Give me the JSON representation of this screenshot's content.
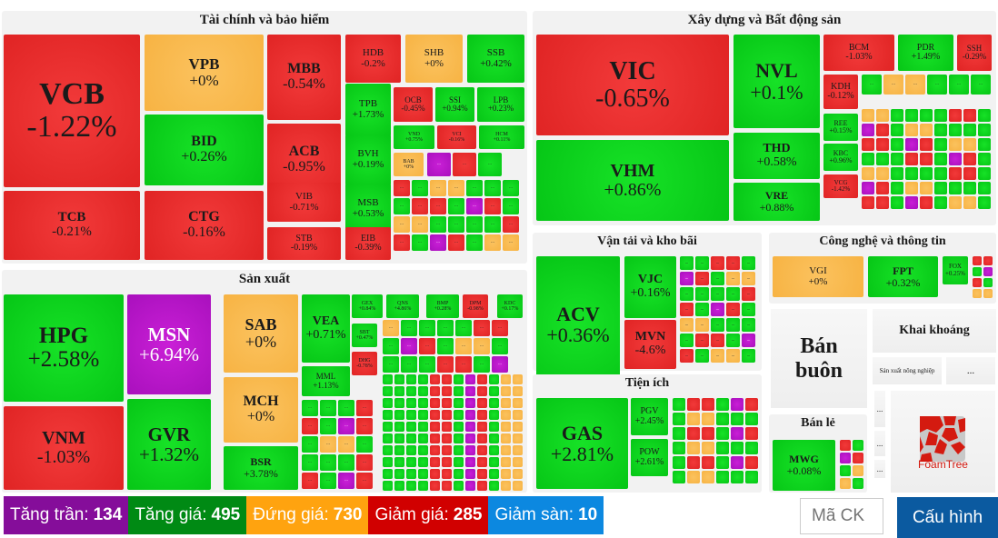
{
  "colors": {
    "up": "#06c616",
    "down": "#e02424",
    "flat": "#f7b343",
    "ceiling": "#a910bd",
    "floor": "#2f9df0",
    "config_button": "#0b5aa0"
  },
  "sectors": [
    {
      "id": "finance",
      "title": "Tài chính và bảo hiểm",
      "big": [
        {
          "s": "VCB",
          "v": "-1.22%",
          "c": "r"
        },
        {
          "s": "TCB",
          "v": "-0.21%",
          "c": "r"
        },
        {
          "s": "VPB",
          "v": "+0%",
          "c": "y"
        },
        {
          "s": "BID",
          "v": "+0.26%",
          "c": "g"
        },
        {
          "s": "CTG",
          "v": "-0.16%",
          "c": "r"
        },
        {
          "s": "MBB",
          "v": "-0.54%",
          "c": "r"
        },
        {
          "s": "ACB",
          "v": "-0.95%",
          "c": "r"
        },
        {
          "s": "VIB",
          "v": "-0.71%",
          "c": "r"
        },
        {
          "s": "STB",
          "v": "-0.19%",
          "c": "r"
        },
        {
          "s": "HDB",
          "v": "-0.2%",
          "c": "r"
        },
        {
          "s": "SHB",
          "v": "+0%",
          "c": "y"
        },
        {
          "s": "SSB",
          "v": "+0.42%",
          "c": "g"
        },
        {
          "s": "TPB",
          "v": "+1.73%",
          "c": "g"
        },
        {
          "s": "BVH",
          "v": "+0.19%",
          "c": "g"
        },
        {
          "s": "MSB",
          "v": "+0.53%",
          "c": "g"
        },
        {
          "s": "EIB",
          "v": "-0.39%",
          "c": "r"
        },
        {
          "s": "OCB",
          "v": "-0.45%",
          "c": "r"
        },
        {
          "s": "SSI",
          "v": "+0.94%",
          "c": "g"
        },
        {
          "s": "LPB",
          "v": "+0.23%",
          "c": "g"
        },
        {
          "s": "VND",
          "v": "+0.75%",
          "c": "g"
        },
        {
          "s": "VCI",
          "v": "-0.16%",
          "c": "r"
        },
        {
          "s": "HCM",
          "v": "+0.11%",
          "c": "g"
        },
        {
          "s": "BAB",
          "v": "+0%",
          "c": "y"
        }
      ]
    },
    {
      "id": "realestate",
      "title": "Xây dựng và Bất động sản",
      "big": [
        {
          "s": "VIC",
          "v": "-0.65%",
          "c": "r"
        },
        {
          "s": "VHM",
          "v": "+0.86%",
          "c": "g"
        },
        {
          "s": "NVL",
          "v": "+0.1%",
          "c": "g"
        },
        {
          "s": "THD",
          "v": "+0.58%",
          "c": "g"
        },
        {
          "s": "VRE",
          "v": "+0.88%",
          "c": "g"
        },
        {
          "s": "BCM",
          "v": "-1.03%",
          "c": "r"
        },
        {
          "s": "PDR",
          "v": "+1.49%",
          "c": "g"
        },
        {
          "s": "SSH",
          "v": "-0.29%",
          "c": "r"
        },
        {
          "s": "KDH",
          "v": "-0.12%",
          "c": "r"
        },
        {
          "s": "REE",
          "v": "+0.15%",
          "c": "g"
        },
        {
          "s": "KBC",
          "v": "+0.96%",
          "c": "g"
        },
        {
          "s": "VCG",
          "v": "-1.42%",
          "c": "r"
        }
      ]
    },
    {
      "id": "manufacturing",
      "title": "Sản xuất",
      "big": [
        {
          "s": "HPG",
          "v": "+2.58%",
          "c": "g"
        },
        {
          "s": "VNM",
          "v": "-1.03%",
          "c": "r"
        },
        {
          "s": "MSN",
          "v": "+6.94%",
          "c": "p"
        },
        {
          "s": "GVR",
          "v": "+1.32%",
          "c": "g"
        },
        {
          "s": "SAB",
          "v": "+0%",
          "c": "y"
        },
        {
          "s": "MCH",
          "v": "+0%",
          "c": "y"
        },
        {
          "s": "BSR",
          "v": "+3.78%",
          "c": "g"
        },
        {
          "s": "VEA",
          "v": "+0.71%",
          "c": "g"
        },
        {
          "s": "MML",
          "v": "+1.13%",
          "c": "g"
        },
        {
          "s": "GEX",
          "v": "+0.84%",
          "c": "g"
        },
        {
          "s": "QNS",
          "v": "+4.86%",
          "c": "g"
        },
        {
          "s": "BMP",
          "v": "+0.28%",
          "c": "g"
        },
        {
          "s": "DPM",
          "v": "-0.98%",
          "c": "r"
        },
        {
          "s": "KDC",
          "v": "+0.17%",
          "c": "g"
        },
        {
          "s": "SBT",
          "v": "+0.47%",
          "c": "g"
        },
        {
          "s": "DHG",
          "v": "-0.78%",
          "c": "r"
        }
      ]
    },
    {
      "id": "transport",
      "title": "Vận tải và kho bãi",
      "big": [
        {
          "s": "ACV",
          "v": "+0.36%",
          "c": "g"
        },
        {
          "s": "VJC",
          "v": "+0.16%",
          "c": "g"
        },
        {
          "s": "MVN",
          "v": "-4.6%",
          "c": "r"
        }
      ]
    },
    {
      "id": "utilities",
      "title": "Tiện ích",
      "big": [
        {
          "s": "GAS",
          "v": "+2.81%",
          "c": "g"
        },
        {
          "s": "PGV",
          "v": "+2.45%",
          "c": "g"
        },
        {
          "s": "POW",
          "v": "+2.61%",
          "c": "g"
        }
      ]
    },
    {
      "id": "tech",
      "title": "Công nghệ và thông tin",
      "big": [
        {
          "s": "VGI",
          "v": "+0%",
          "c": "y"
        },
        {
          "s": "FPT",
          "v": "+0.32%",
          "c": "g"
        },
        {
          "s": "FOX",
          "v": "+0.25%",
          "c": "g"
        }
      ]
    },
    {
      "id": "retail",
      "title": "Bán lẻ",
      "big": [
        {
          "s": "MWG",
          "v": "+0.08%",
          "c": "g"
        }
      ]
    }
  ],
  "empty_groups": {
    "wholesale": "Bán buôn",
    "mining": "Khai khoáng",
    "agriculture": "Sản xuất nông nghiệp",
    "more": "..."
  },
  "more_label": "...",
  "foamtree_label": "FoamTree",
  "stats": [
    {
      "label": "Tăng trần:",
      "value": "134",
      "color": "#850d9a"
    },
    {
      "label": "Tăng giá:",
      "value": "495",
      "color": "#008a14"
    },
    {
      "label": "Đứng giá:",
      "value": "730",
      "color": "#ffa30f"
    },
    {
      "label": "Giảm giá:",
      "value": "285",
      "color": "#d10000"
    },
    {
      "label": "Giảm sàn:",
      "value": "10",
      "color": "#0c88e0"
    }
  ],
  "search": {
    "placeholder": "Mã CK"
  },
  "config_button": "Cấu hình"
}
